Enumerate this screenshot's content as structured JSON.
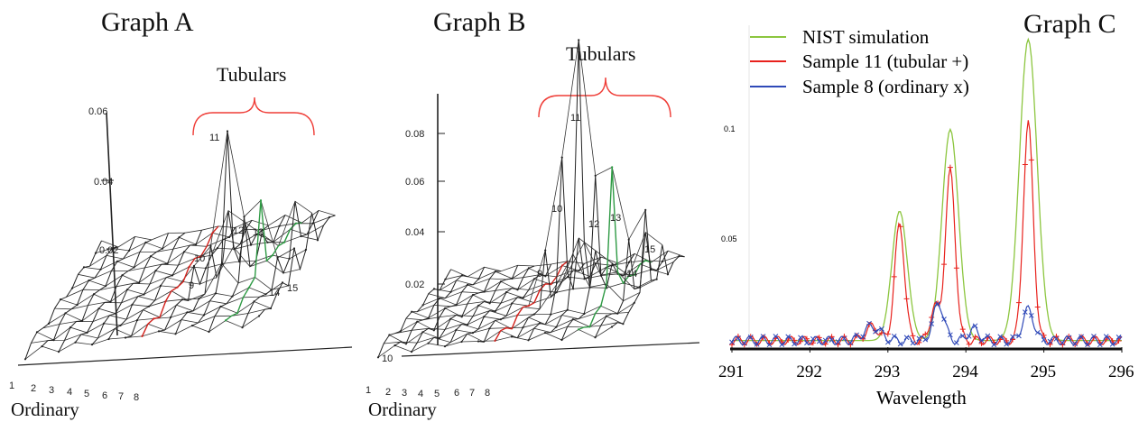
{
  "panels": {
    "a": {
      "title": "Graph A",
      "tubular_label": "Tubulars",
      "ordinary_label": "Ordinary",
      "y_ticks": [
        "0.06",
        "0.04",
        "0.02"
      ],
      "sample_numbers": [
        "1",
        "2",
        "3",
        "4",
        "5",
        "6",
        "7",
        "8"
      ],
      "peak_labels": [
        "9",
        "10",
        "11",
        "12",
        "13",
        "14",
        "15"
      ]
    },
    "b": {
      "title": "Graph   B",
      "tubular_label": "Tubulars",
      "ordinary_label": "Ordinary",
      "y_ticks": [
        "0.08",
        "0.06",
        "0.04",
        "0.02"
      ],
      "extra_label": "10",
      "sample_numbers": [
        "1",
        "2",
        "3",
        "4",
        "5",
        "6",
        "7",
        "8"
      ],
      "peak_labels": [
        "9",
        "10",
        "11",
        "12",
        "13",
        "14",
        "15"
      ]
    },
    "c": {
      "title": "Graph   C",
      "legend": [
        {
          "label": "NIST simulation",
          "color": "#8cc63f"
        },
        {
          "label": "Sample 11 (tubular +)",
          "color": "#e8211c"
        },
        {
          "label": "Sample 8 (ordinary x)",
          "color": "#2f49b8"
        }
      ],
      "y_ticks": [
        "0.1",
        "0.05"
      ],
      "x_ticks": [
        "291",
        "292",
        "293",
        "294",
        "295",
        "296"
      ],
      "xlabel": "Wavelength"
    }
  },
  "chart_data": [
    {
      "type": "line",
      "panel": "Graph A",
      "series": [
        {
          "sample": "9",
          "peak": 0.01
        },
        {
          "sample": "10",
          "peak": 0.015
        },
        {
          "sample": "11",
          "peak": 0.047
        },
        {
          "sample": "12",
          "peak": 0.022
        },
        {
          "sample": "13",
          "peak": 0.026
        },
        {
          "sample": "14",
          "peak": 0.009
        },
        {
          "sample": "15",
          "peak": 0.011
        }
      ],
      "y_ticks": [
        0.02,
        0.04,
        0.06
      ]
    },
    {
      "type": "line",
      "panel": "Graph B",
      "series": [
        {
          "sample": "9",
          "peak": 0.02
        },
        {
          "sample": "10",
          "peak": 0.046
        },
        {
          "sample": "11",
          "peak": 0.079
        },
        {
          "sample": "12",
          "peak": 0.04
        },
        {
          "sample": "13",
          "peak": 0.042
        },
        {
          "sample": "14",
          "peak": 0.021
        },
        {
          "sample": "15",
          "peak": 0.029
        }
      ],
      "y_ticks": [
        0.02,
        0.04,
        0.06,
        0.08
      ]
    },
    {
      "type": "line",
      "panel": "Graph C",
      "xlabel": "Wavelength",
      "xlim": [
        291,
        296
      ],
      "ylim": [
        0,
        0.115
      ],
      "baseline": 0.003,
      "series": [
        {
          "name": "NIST simulation",
          "color": "#8cc63f",
          "peaks": [
            {
              "x": 293.15,
              "y": 0.046,
              "w": 0.14
            },
            {
              "x": 293.8,
              "y": 0.075,
              "w": 0.15
            },
            {
              "x": 294.8,
              "y": 0.107,
              "w": 0.16
            }
          ]
        },
        {
          "name": "Sample 11 (tubular +)",
          "color": "#e8211c",
          "peaks": [
            {
              "x": 293.15,
              "y": 0.041,
              "w": 0.09
            },
            {
              "x": 293.8,
              "y": 0.06,
              "w": 0.09
            },
            {
              "x": 294.8,
              "y": 0.077,
              "w": 0.09
            },
            {
              "x": 293.6,
              "y": 0.012,
              "w": 0.08
            },
            {
              "x": 292.8,
              "y": 0.005,
              "w": 0.12
            }
          ]
        },
        {
          "name": "Sample 8 (ordinary x)",
          "color": "#2f49b8",
          "peaks": [
            {
              "x": 293.65,
              "y": 0.013,
              "w": 0.1
            },
            {
              "x": 294.8,
              "y": 0.011,
              "w": 0.1
            },
            {
              "x": 292.8,
              "y": 0.005,
              "w": 0.15
            },
            {
              "x": 294.1,
              "y": 0.004,
              "w": 0.1
            }
          ]
        }
      ]
    }
  ]
}
